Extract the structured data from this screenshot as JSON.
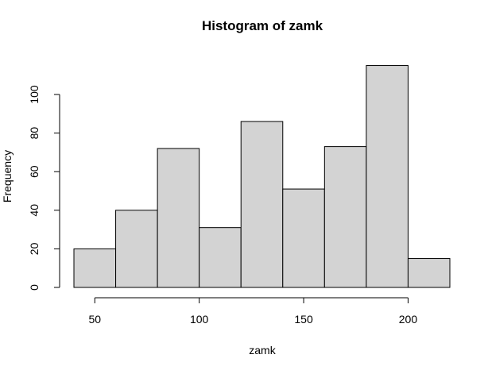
{
  "chart_data": {
    "type": "bar",
    "title": "Histogram of zamk",
    "xlabel": "zamk",
    "ylabel": "Frequency",
    "bins": [
      {
        "from": 40,
        "to": 60,
        "count": 20
      },
      {
        "from": 60,
        "to": 80,
        "count": 40
      },
      {
        "from": 80,
        "to": 100,
        "count": 72
      },
      {
        "from": 100,
        "to": 120,
        "count": 31
      },
      {
        "from": 120,
        "to": 140,
        "count": 86
      },
      {
        "from": 140,
        "to": 160,
        "count": 51
      },
      {
        "from": 160,
        "to": 180,
        "count": 73
      },
      {
        "from": 180,
        "to": 200,
        "count": 115
      },
      {
        "from": 200,
        "to": 220,
        "count": 15
      }
    ],
    "xlim": [
      40,
      220
    ],
    "ylim": [
      0,
      115
    ],
    "x_ticks": [
      50,
      100,
      150,
      200
    ],
    "y_ticks": [
      0,
      20,
      40,
      60,
      80,
      100
    ],
    "grid": false,
    "legend": "none",
    "bar_color": "#d3d3d3"
  }
}
